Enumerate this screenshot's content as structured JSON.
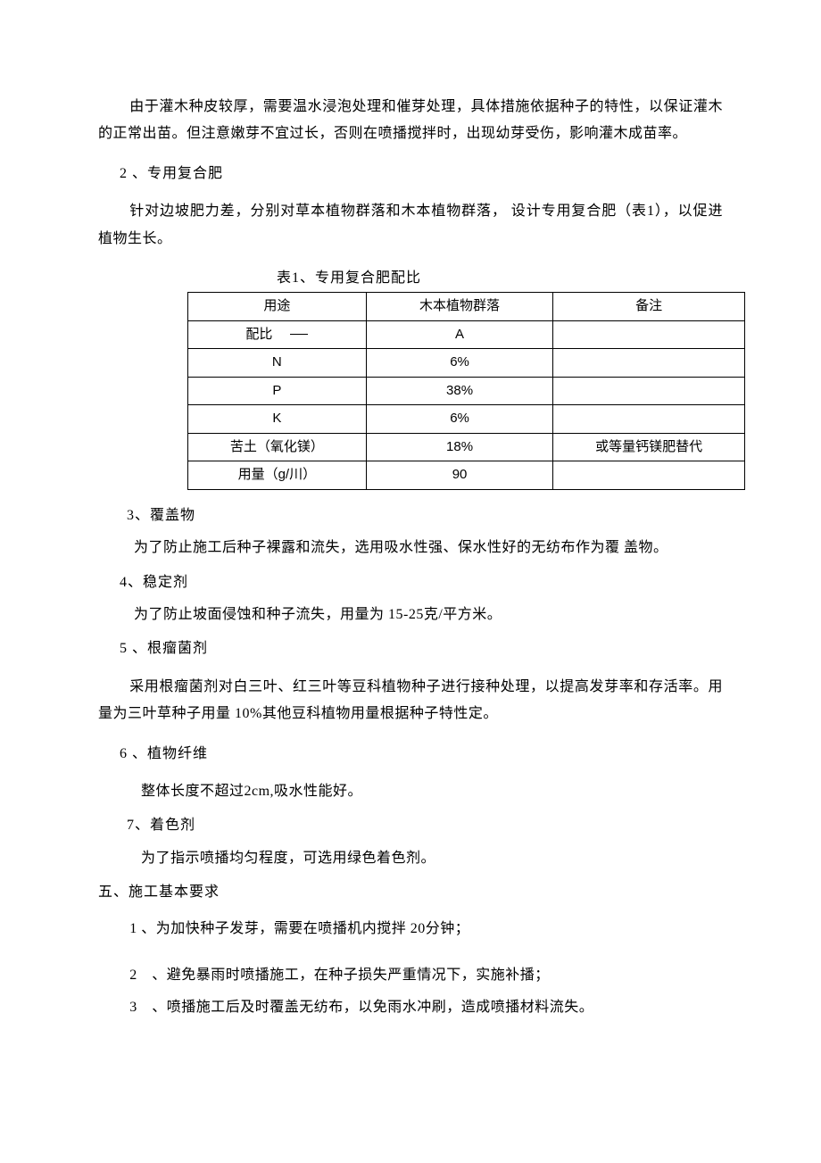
{
  "p1": "由于灌木种皮较厚，需要温水浸泡处理和催芽处理，具体措施依据种子的特性，以保证灌木的正常出苗。但注意嫩芽不宜过长，否则在喷播搅拌时，出现幼芽受伤，影响灌木成苗率。",
  "s2_title": "2 、专用复合肥",
  "p2": "针对边坡肥力差，分别对草本植物群落和木本植物群落， 设计专用复合肥（表1），以促进植物生长。",
  "table": {
    "caption": "表1、专用复合肥配比",
    "rows": [
      [
        "用途",
        "木本植物群落",
        "备注"
      ],
      [
        "配比",
        "A",
        ""
      ],
      [
        "N",
        "6%",
        ""
      ],
      [
        "P",
        "38%",
        ""
      ],
      [
        "K",
        "6%",
        ""
      ],
      [
        "苦土（氧化镁）",
        "18%",
        "或等量钙镁肥替代"
      ],
      [
        "用量（g/川）",
        "90",
        ""
      ]
    ]
  },
  "s3_title": "3、覆盖物",
  "p3": "为了防止施工后种子裸露和流失，选用吸水性强、保水性好的无纺布作为覆 盖物。",
  "s4_title": "4、稳定剂",
  "p4": "为了防止坡面侵蚀和种子流失，用量为 15-25克/平方米。",
  "s5_title": "5 、根瘤菌剂",
  "p5": "采用根瘤菌剂对白三叶、红三叶等豆科植物种子进行接种处理，以提高发芽率和存活率。用量为三叶草种子用量 10%其他豆科植物用量根据种子特性定。",
  "s6_title": "6 、植物纤维",
  "p6": "整体长度不超过2cm,吸水性能好。",
  "s7_title": "7、着色剂",
  "p7": "为了指示喷播均匀程度，可选用绿色着色剂。",
  "h5": "五、施工基本要求",
  "i1": "1 、为加快种子发芽，需要在喷播机内搅拌 20分钟；",
  "i2": "2　、避免暴雨时喷播施工，在种子损失严重情况下，实施补播；",
  "i3": "3　、喷播施工后及时覆盖无纺布，以免雨水冲刷，造成喷播材料流失。"
}
